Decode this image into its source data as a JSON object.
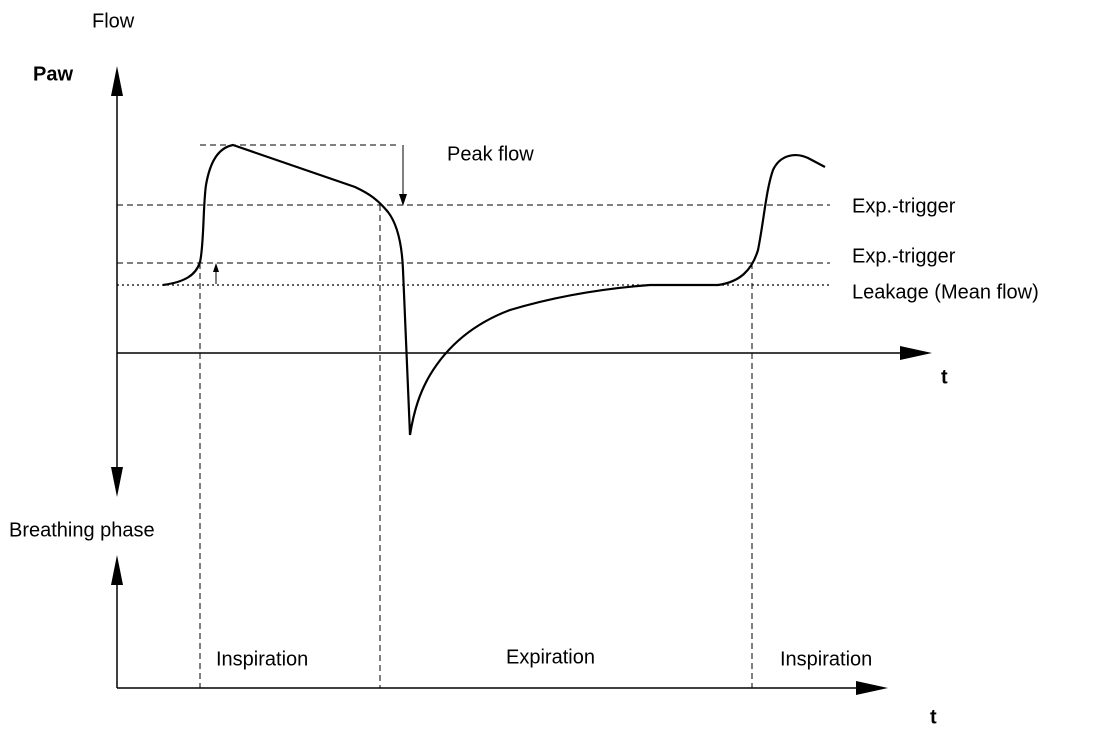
{
  "labels": {
    "flow": "Flow",
    "paw": "Paw",
    "peak_flow": "Peak flow",
    "exp_trigger_upper": "Exp.-trigger",
    "exp_trigger_lower": "Exp.-trigger",
    "leakage": "Leakage (Mean flow)",
    "t_upper": "t",
    "breathing_phase": "Breathing phase",
    "phases": [
      "Inspiration",
      "Expiration",
      "Inspiration"
    ],
    "t_lower": "t"
  }
}
